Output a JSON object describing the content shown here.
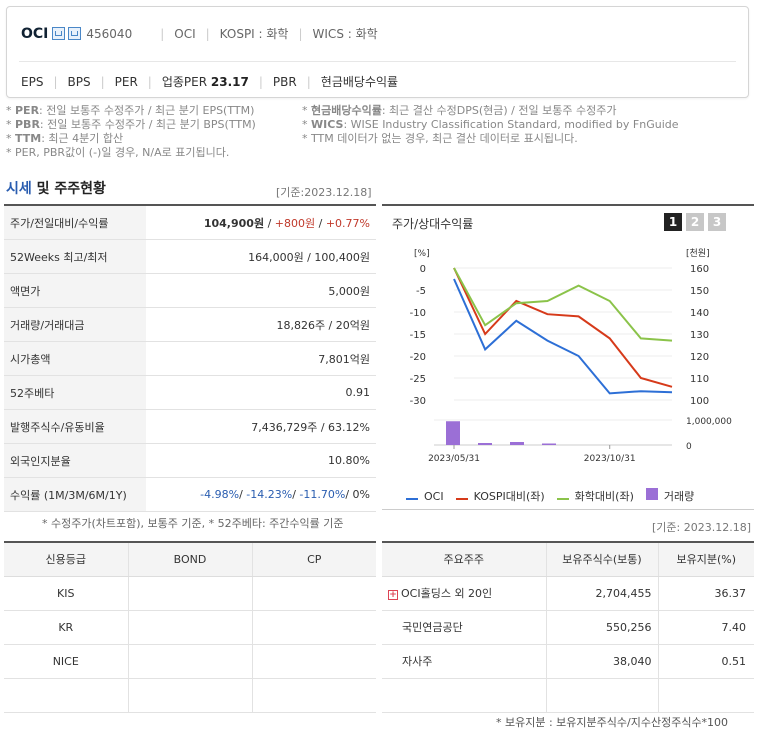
{
  "company": {
    "name": "OCI",
    "code": "456040",
    "market": "OCI",
    "kospi": "KOSPI : 화학",
    "wics": "WICS : 화학"
  },
  "metrics": {
    "eps": "EPS",
    "bps": "BPS",
    "per": "PER",
    "ind_per_label": "업종PER",
    "ind_per_value": "23.17",
    "pbr": "PBR",
    "dividend": "현금배당수익률"
  },
  "notes": {
    "left": [
      {
        "term": "PER",
        "text": ": 전일 보통주 수정주가 / 최근 분기 EPS(TTM)"
      },
      {
        "term": "PBR",
        "text": ": 전일 보통주 수정주가 / 최근 분기 BPS(TTM)"
      },
      {
        "term": "TTM",
        "text": ": 최근 4분기 합산"
      },
      {
        "term": "",
        "text": "PER, PBR값이 (-)일 경우, N/A로 표기됩니다."
      }
    ],
    "right": [
      {
        "term": "현금배당수익률",
        "text": ": 최근 결산 수정DPS(현금) / 전일 보통주 수정주가"
      },
      {
        "term": "WICS",
        "text": ": WISE Industry Classification Standard, modified by FnGuide"
      },
      {
        "term": "",
        "text": "TTM 데이터가 없는 경우, 최근 결산 데이터로 표시됩니다."
      }
    ]
  },
  "section": {
    "title_a": "시세",
    "title_b": " 및 주주현황",
    "date": "[기준:2023.12.18]"
  },
  "quote": {
    "price_label": "주가/전일대비/수익률",
    "price": "104,900원",
    "sep1": " / ",
    "change": "+800원",
    "sep2": " / ",
    "change_pct": "+0.77%",
    "rows": [
      {
        "label": "52Weeks 최고/최저",
        "value": "164,000원 / 100,400원"
      },
      {
        "label": "액면가",
        "value": "5,000원"
      },
      {
        "label": "거래량/거래대금",
        "value": "18,826주 / 20억원"
      },
      {
        "label": "시가총액",
        "value": "7,801억원"
      },
      {
        "label": "52주베타",
        "value": "0.91"
      },
      {
        "label": "발행주식수/유동비율",
        "value": "7,436,729주 / 63.12%"
      },
      {
        "label": "외국인지분율",
        "value": "10.80%"
      }
    ],
    "returns_label": "수익률 (1M/3M/6M/1Y)",
    "r1": "-4.98%",
    "r2": "-14.23%",
    "r3": "-11.70%",
    "r4": "0%",
    "footnote": "* 수정주가(차트포함), 보통주 기준, * 52주베타: 주간수익률 기준"
  },
  "chart_panel": {
    "title": "주가/상대수익률",
    "pages": [
      "1",
      "2",
      "3"
    ],
    "active_page": "1"
  },
  "chart_data": {
    "type": "line",
    "x": [
      "2023/05/31",
      "",
      "",
      "",
      "",
      "2023/10/31",
      "",
      ""
    ],
    "xtick_labels": [
      "2023/05/31",
      "2023/10/31"
    ],
    "left_unit": "[%]",
    "left_ticks": [
      "0",
      "-5",
      "-10",
      "-15",
      "-20",
      "-25",
      "-30"
    ],
    "right_unit": "[천원]",
    "right_ticks": [
      "160",
      "150",
      "140",
      "130",
      "120",
      "110",
      "100"
    ],
    "vol_ticks": [
      "1,000,000",
      "0"
    ],
    "ylim_left": [
      -30,
      0
    ],
    "ylim_right": [
      100,
      160
    ],
    "series": [
      {
        "name": "OCI",
        "color": "#2d6fd6",
        "axis": "right",
        "values": [
          155,
          123,
          136,
          127,
          120,
          103,
          104,
          103.5
        ]
      },
      {
        "name": "KOSPI대비(좌)",
        "color": "#d63a1a",
        "axis": "left",
        "values": [
          0,
          -15,
          -7.5,
          -10.5,
          -11,
          -16,
          -25,
          -27
        ]
      },
      {
        "name": "화학대비(좌)",
        "color": "#8bc34a",
        "axis": "left",
        "values": [
          0,
          -13,
          -8,
          -7.5,
          -4,
          -7.5,
          -16,
          -16.5
        ]
      },
      {
        "name": "거래량",
        "color": "#9b6fd6",
        "axis": "volume",
        "values": [
          950000,
          80000,
          120000,
          60000,
          0,
          0,
          0,
          0
        ]
      }
    ]
  },
  "credit": {
    "headers": [
      "신용등급",
      "BOND",
      "CP"
    ],
    "rows": [
      [
        "KIS",
        "",
        ""
      ],
      [
        "KR",
        "",
        ""
      ],
      [
        "NICE",
        "",
        ""
      ],
      [
        "",
        "",
        ""
      ]
    ]
  },
  "holders": {
    "date": "[기준: 2023.12.18]",
    "headers": [
      "주요주주",
      "보유주식수(보통)",
      "보유지분(%)"
    ],
    "rows": [
      {
        "name": "OCI홀딩스 외 20인",
        "shares": "2,704,455",
        "pct": "36.37",
        "expand": "+"
      },
      {
        "name": "국민연금공단",
        "shares": "550,256",
        "pct": "7.40",
        "expand": ""
      },
      {
        "name": "자사주",
        "shares": "38,040",
        "pct": "0.51",
        "expand": ""
      }
    ],
    "footnote": "* 보유지분 : 보유지분주식수/지수산정주식수*100"
  }
}
